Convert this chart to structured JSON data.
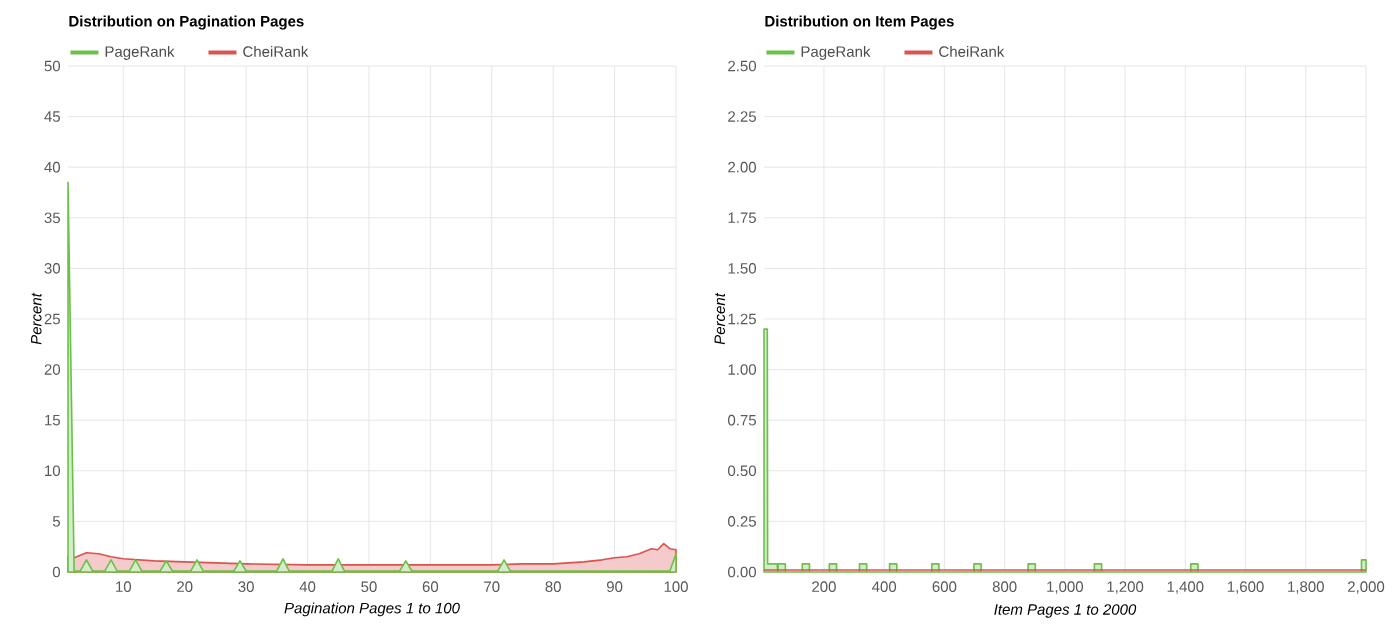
{
  "chart_data": [
    {
      "type": "area",
      "title": "Distribution on Pagination Pages",
      "xlabel": "Pagination Pages 1 to 100",
      "ylabel": "Percent",
      "xlim": [
        1,
        100
      ],
      "ylim": [
        0,
        50
      ],
      "xticks": [
        10,
        20,
        30,
        40,
        50,
        60,
        70,
        80,
        90,
        100
      ],
      "yticks": [
        0,
        5,
        10,
        15,
        20,
        25,
        30,
        35,
        40,
        45,
        50
      ],
      "grid": true,
      "legend": "top left",
      "series": [
        {
          "name": "PageRank",
          "color": "#6cc04a",
          "x": [
            1,
            2,
            3,
            4,
            5,
            7,
            8,
            9,
            11,
            12,
            13,
            16,
            17,
            18,
            21,
            22,
            23,
            28,
            29,
            30,
            35,
            36,
            37,
            44,
            45,
            46,
            55,
            56,
            57,
            71,
            72,
            73,
            99,
            100
          ],
          "values": [
            38.5,
            0.1,
            0.1,
            1.2,
            0.1,
            0.1,
            1.2,
            0.1,
            0.1,
            1.2,
            0.1,
            0.1,
            1.1,
            0.1,
            0.1,
            1.2,
            0.1,
            0.1,
            1.1,
            0.1,
            0.1,
            1.3,
            0.1,
            0.1,
            1.3,
            0.1,
            0.1,
            1.1,
            0.1,
            0.1,
            1.2,
            0.1,
            0.1,
            1.8
          ]
        },
        {
          "name": "CheiRank",
          "color": "#d9534f",
          "x": [
            1,
            2,
            4,
            6,
            8,
            10,
            15,
            20,
            25,
            30,
            40,
            50,
            60,
            70,
            75,
            80,
            85,
            88,
            90,
            92,
            94,
            96,
            97,
            98,
            99,
            100
          ],
          "values": [
            1.5,
            1.4,
            1.9,
            1.8,
            1.5,
            1.3,
            1.1,
            1.0,
            0.9,
            0.8,
            0.7,
            0.7,
            0.7,
            0.7,
            0.8,
            0.8,
            1.0,
            1.2,
            1.4,
            1.5,
            1.8,
            2.3,
            2.2,
            2.8,
            2.3,
            2.2
          ]
        }
      ]
    },
    {
      "type": "area",
      "title": "Distribution on Item Pages",
      "xlabel": "Item Pages 1 to 2000",
      "ylabel": "Percent",
      "xlim": [
        1,
        2000
      ],
      "ylim": [
        0,
        2.5
      ],
      "xticks": [
        200,
        400,
        600,
        800,
        {
          "value": 1000,
          "label": "1,000"
        },
        {
          "value": 1200,
          "label": "1,200"
        },
        {
          "value": 1400,
          "label": "1,400"
        },
        {
          "value": 1600,
          "label": "1,600"
        },
        {
          "value": 1800,
          "label": "1,800"
        },
        {
          "value": 2000,
          "label": "2,000"
        }
      ],
      "yticks": [
        {
          "value": 0,
          "label": "0.00"
        },
        {
          "value": 0.25,
          "label": "0.25"
        },
        {
          "value": 0.5,
          "label": "0.50"
        },
        {
          "value": 0.75,
          "label": "0.75"
        },
        {
          "value": 1,
          "label": "1.00"
        },
        {
          "value": 1.25,
          "label": "1.25"
        },
        {
          "value": 1.5,
          "label": "1.50"
        },
        {
          "value": 1.75,
          "label": "1.75"
        },
        {
          "value": 2,
          "label": "2.00"
        },
        {
          "value": 2.25,
          "label": "2.25"
        },
        {
          "value": 2.5,
          "label": "2.50"
        }
      ],
      "grid": true,
      "legend": "top left",
      "series": [
        {
          "name": "PageRank",
          "color": "#6cc04a",
          "x": [
            1,
            12,
            13,
            45,
            46,
            48,
            48,
            72,
            72,
            128,
            128,
            152,
            152,
            218,
            218,
            242,
            242,
            318,
            318,
            342,
            342,
            418,
            418,
            442,
            442,
            558,
            558,
            582,
            582,
            698,
            698,
            722,
            722,
            878,
            878,
            902,
            902,
            1098,
            1098,
            1122,
            1122,
            1418,
            1418,
            1442,
            1442,
            1985,
            1985,
            2000
          ],
          "values": [
            1.2,
            1.2,
            0.04,
            0.04,
            0,
            0,
            0.04,
            0.04,
            0,
            0,
            0.04,
            0.04,
            0,
            0,
            0.04,
            0.04,
            0,
            0,
            0.04,
            0.04,
            0,
            0,
            0.04,
            0.04,
            0,
            0,
            0.04,
            0.04,
            0,
            0,
            0.04,
            0.04,
            0,
            0,
            0.04,
            0.04,
            0,
            0,
            0.04,
            0.04,
            0,
            0,
            0.04,
            0.04,
            0,
            0,
            0.06,
            0.06
          ]
        },
        {
          "name": "CheiRank",
          "color": "#d9534f",
          "type": "line",
          "x": [
            1,
            2000
          ],
          "values": [
            0.01,
            0.01
          ]
        }
      ]
    }
  ]
}
